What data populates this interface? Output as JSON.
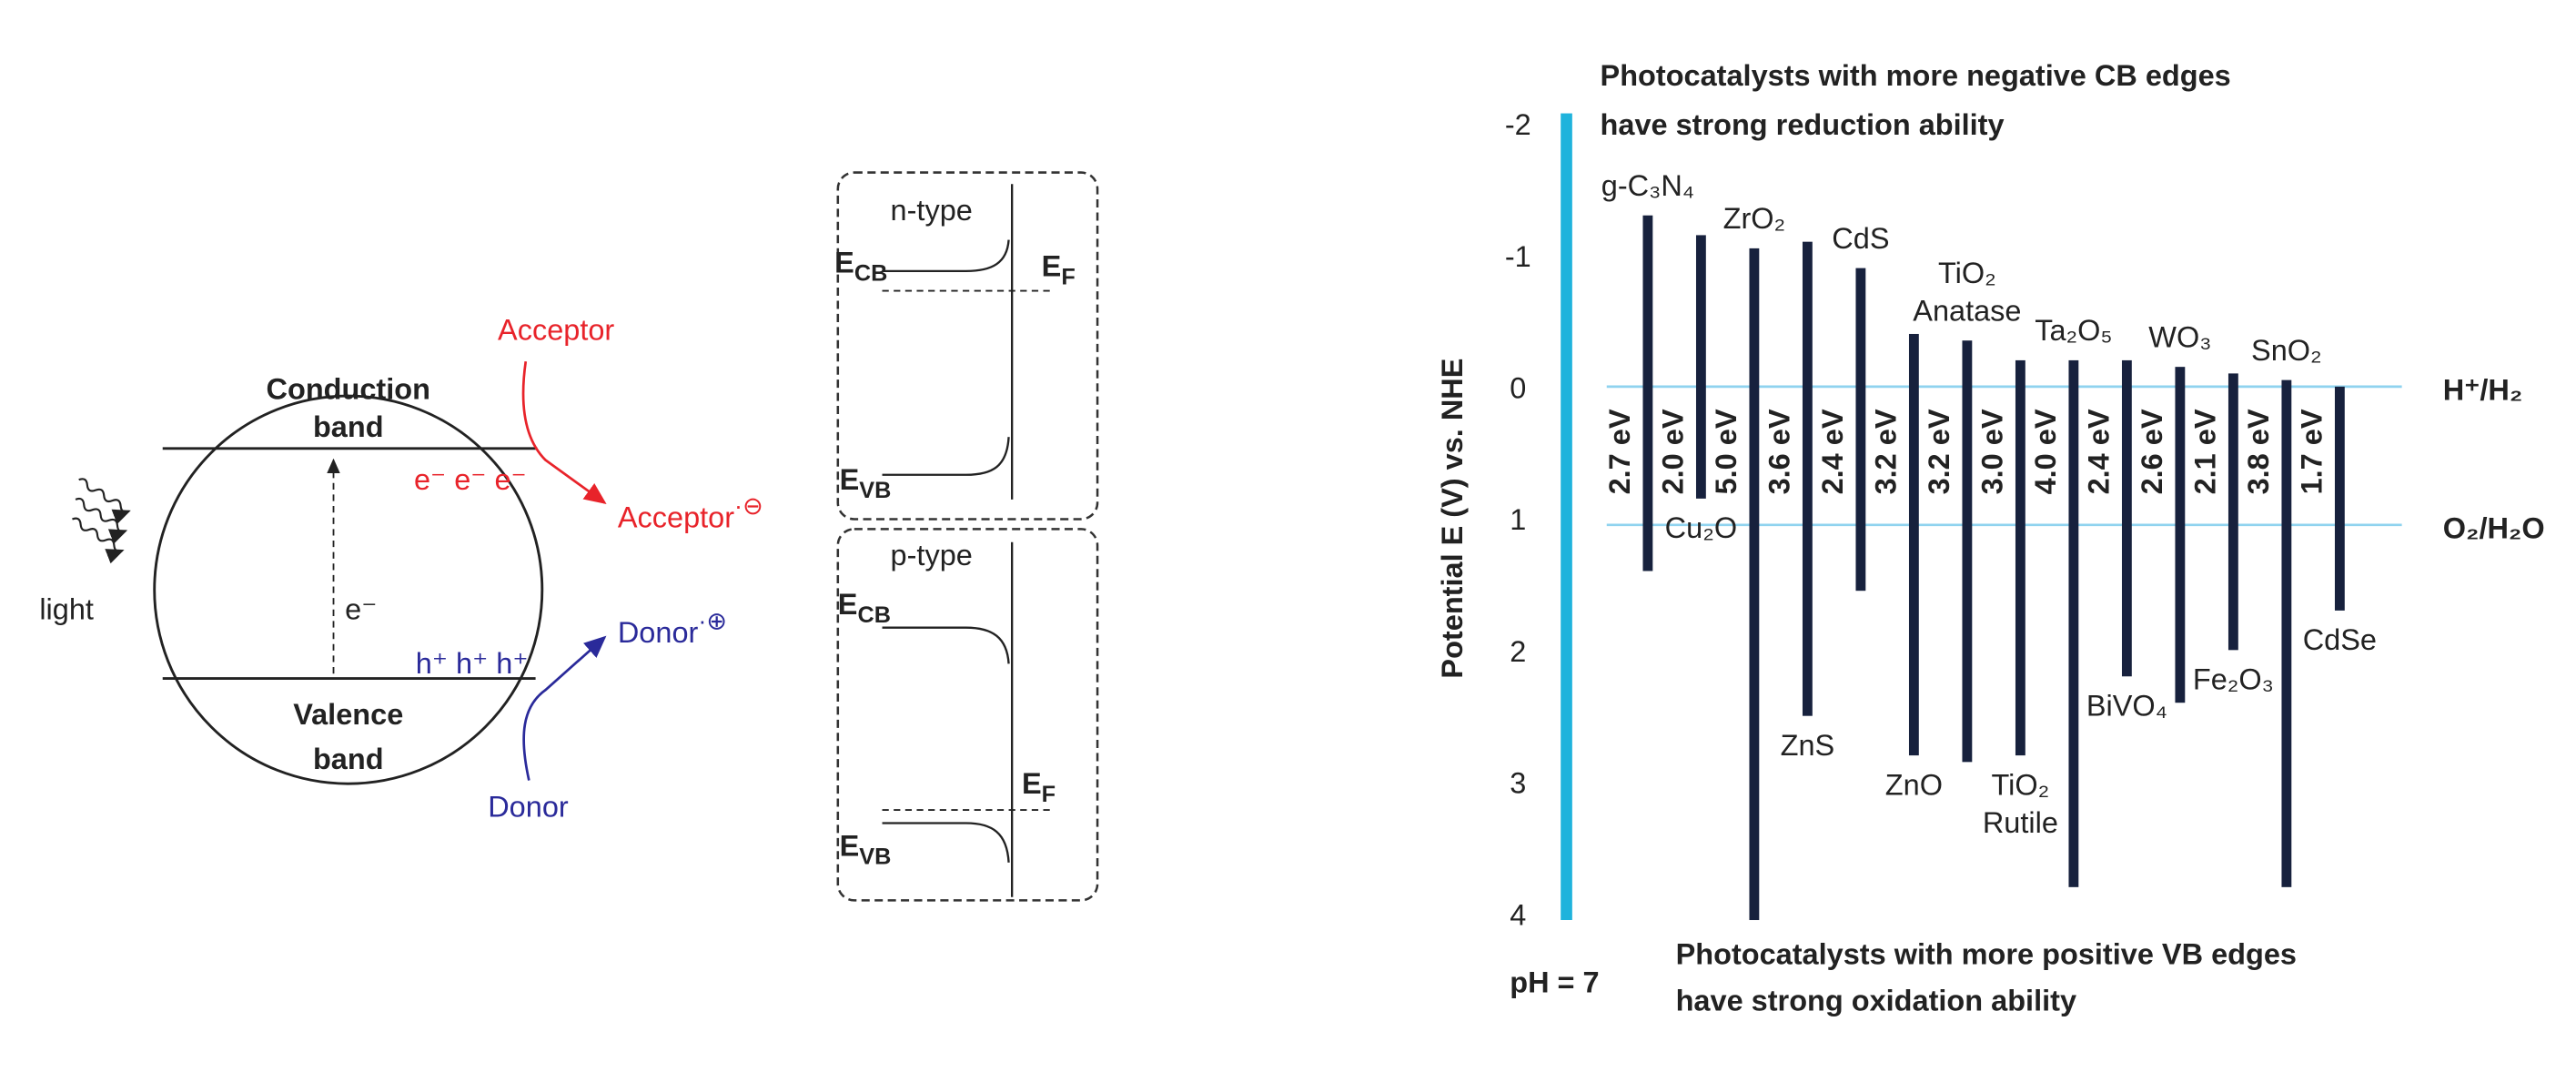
{
  "diagram": {
    "circle": {
      "acceptor": "Acceptor",
      "conduction_band": [
        "Conduction",
        "band"
      ],
      "electrons": "e⁻ e⁻ e⁻",
      "acceptor_ion": {
        "base": "Acceptor",
        "sup": "·⊖"
      },
      "excited_electron": "e⁻",
      "light": "light",
      "holes": "h⁺ h⁺ h⁺",
      "donor_ion": {
        "base": "Donor",
        "sup": "·⊕"
      },
      "valence_band": [
        "Valence",
        "band"
      ],
      "donor": "Donor"
    },
    "n_type": {
      "title": "n-type",
      "ecb": {
        "main": "E",
        "sub": "CB"
      },
      "ef": {
        "main": "E",
        "sub": "F"
      },
      "evb": {
        "main": "E",
        "sub": "VB"
      }
    },
    "p_type": {
      "title": "p-type",
      "ecb": {
        "main": "E",
        "sub": "CB"
      },
      "ef": {
        "main": "E",
        "sub": "F"
      },
      "evb": {
        "main": "E",
        "sub": "VB"
      }
    }
  },
  "chart_data": {
    "type": "band-edge",
    "ylabel": "Potential E (V) vs. NHE",
    "ylim": [
      -2,
      4
    ],
    "yticks": [
      -2,
      -1,
      0,
      1,
      2,
      3,
      4
    ],
    "axis_color": "#1fb3dc",
    "bar_color": "#17213d",
    "top_note": [
      "Photocatalysts with more negative CB edges",
      "have strong reduction ability"
    ],
    "top_note_color": "#e8232a",
    "bottom_note": [
      "Photocatalysts with more positive  VB edges",
      "have strong oxidation  ability"
    ],
    "bottom_note_color": "#1a9ad6",
    "ph_label": "pH = 7",
    "reference_lines": [
      {
        "label": "H⁺/H₂",
        "value": 0
      },
      {
        "label": "O₂/H₂O",
        "value": 1.05
      }
    ],
    "materials": [
      {
        "name": [
          "g-C₃N₄"
        ],
        "gap_label": "2.7 eV",
        "cb": -1.3,
        "vb": 1.4
      },
      {
        "name": [
          "Cu₂O"
        ],
        "gap_label": "2.0 eV",
        "cb": -1.15,
        "vb": 0.85
      },
      {
        "name": [
          "ZrO₂"
        ],
        "gap_label": "5.0 eV",
        "cb": -1.05,
        "vb": 4.05
      },
      {
        "name": [
          "ZnS"
        ],
        "gap_label": "3.6 eV",
        "cb": -1.1,
        "vb": 2.5
      },
      {
        "name": [
          "CdS"
        ],
        "gap_label": "2.4 eV",
        "cb": -0.9,
        "vb": 1.55
      },
      {
        "name": [
          "ZnO"
        ],
        "gap_label": "3.2 eV",
        "cb": -0.4,
        "vb": 2.8
      },
      {
        "name": [
          "TiO₂",
          "Anatase"
        ],
        "gap_label": "3.2 eV",
        "cb": -0.35,
        "vb": 2.85
      },
      {
        "name": [
          "TiO₂",
          "Rutile"
        ],
        "gap_label": "3.0 eV",
        "cb": -0.2,
        "vb": 2.8
      },
      {
        "name": [
          "Ta₂O₅"
        ],
        "gap_label": "4.0 eV",
        "cb": -0.2,
        "vb": 3.8
      },
      {
        "name": [
          "BiVO₄"
        ],
        "gap_label": "2.4 eV",
        "cb": -0.2,
        "vb": 2.2
      },
      {
        "name": [
          "WO₃"
        ],
        "gap_label": "2.6 eV",
        "cb": -0.15,
        "vb": 2.4
      },
      {
        "name": [
          "Fe₂O₃"
        ],
        "gap_label": "2.1 eV",
        "cb": -0.1,
        "vb": 2.0
      },
      {
        "name": [
          "SnO₂"
        ],
        "gap_label": "3.8 eV",
        "cb": -0.05,
        "vb": 3.8
      },
      {
        "name": [
          "CdSe"
        ],
        "gap_label": "1.7 eV",
        "cb": 0,
        "vb": 1.7
      }
    ]
  }
}
